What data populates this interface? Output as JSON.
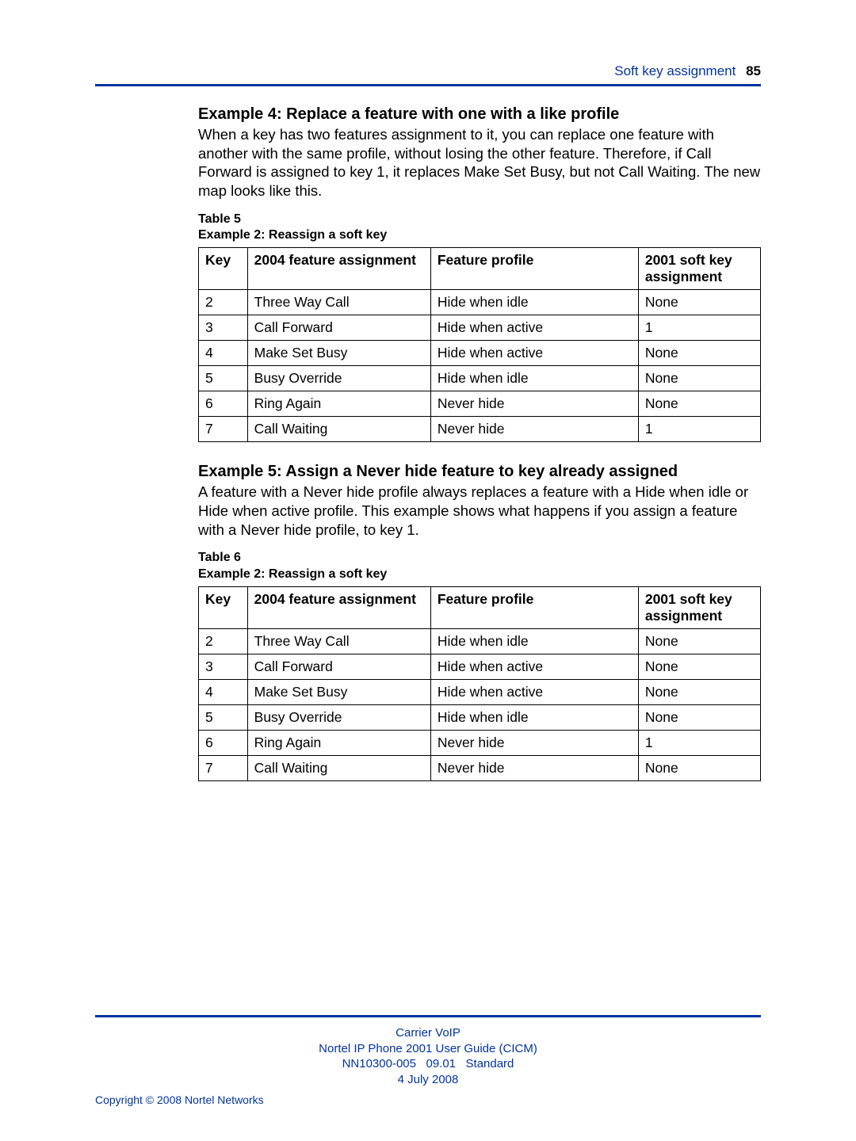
{
  "header": {
    "section": "Soft key assignment",
    "pagenum": "85"
  },
  "example4": {
    "title": "Example 4: Replace a feature with one with a like profile",
    "body": "When a key has two features assignment to it, you can replace one feature with another with the same profile, without losing the other feature. Therefore, if Call Forward is assigned to key 1, it replaces Make Set Busy, but not Call Waiting. The new map looks like this."
  },
  "table5": {
    "caption_line1": "Table 5",
    "caption_line2": "Example 2: Reassign a soft key",
    "headers": {
      "c0": "Key",
      "c1": "2004 feature assignment",
      "c2": "Feature profile",
      "c3": "2001 soft key assignment"
    },
    "rows": [
      {
        "c0": "2",
        "c1": "Three Way Call",
        "c2": "Hide when idle",
        "c3": "None"
      },
      {
        "c0": "3",
        "c1": "Call Forward",
        "c2": "Hide when active",
        "c3": "1"
      },
      {
        "c0": "4",
        "c1": "Make Set Busy",
        "c2": "Hide when active",
        "c3": "None"
      },
      {
        "c0": "5",
        "c1": "Busy Override",
        "c2": "Hide when idle",
        "c3": "None"
      },
      {
        "c0": "6",
        "c1": "Ring Again",
        "c2": "Never hide",
        "c3": "None"
      },
      {
        "c0": "7",
        "c1": "Call Waiting",
        "c2": "Never hide",
        "c3": "1"
      }
    ]
  },
  "example5": {
    "title": "Example 5: Assign a Never hide feature to key already assigned",
    "body": "A feature with a Never hide profile always replaces a feature with a Hide when idle or Hide when active profile. This example shows what happens if you assign a feature with a Never hide profile, to key 1."
  },
  "table6": {
    "caption_line1": "Table 6",
    "caption_line2": "Example 2: Reassign a soft key",
    "headers": {
      "c0": "Key",
      "c1": "2004 feature assignment",
      "c2": "Feature profile",
      "c3": "2001 soft key assignment"
    },
    "rows": [
      {
        "c0": "2",
        "c1": "Three Way Call",
        "c2": "Hide when idle",
        "c3": "None"
      },
      {
        "c0": "3",
        "c1": "Call Forward",
        "c2": "Hide when active",
        "c3": "None"
      },
      {
        "c0": "4",
        "c1": "Make Set Busy",
        "c2": "Hide when active",
        "c3": "None"
      },
      {
        "c0": "5",
        "c1": "Busy Override",
        "c2": "Hide when idle",
        "c3": "None"
      },
      {
        "c0": "6",
        "c1": "Ring Again",
        "c2": "Never hide",
        "c3": "1"
      },
      {
        "c0": "7",
        "c1": "Call Waiting",
        "c2": "Never hide",
        "c3": "None"
      }
    ]
  },
  "footer": {
    "line1": "Carrier VoIP",
    "line2": "Nortel IP Phone 2001 User Guide (CICM)",
    "line3": "NN10300-005   09.01   Standard",
    "line4": "4 July 2008",
    "copyright": "Copyright © 2008 Nortel Networks"
  }
}
